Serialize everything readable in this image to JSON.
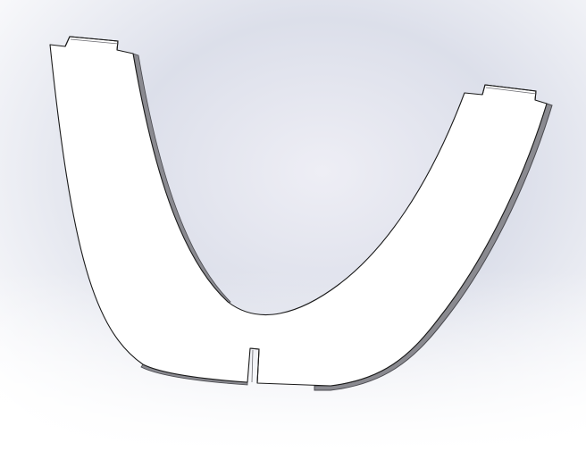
{
  "viewport": {
    "background": {
      "center_color": "#eeeef5",
      "mid_color": "#dcdfea",
      "edge_color": "#ffffff"
    },
    "model": {
      "part": "u-shaped-sheet-metal-part",
      "face_color": "#ffffff",
      "edge_color": "#1a1a1a",
      "thickness_color": "#8a8a90",
      "thickness_dark_color": "#4a4a4f"
    }
  }
}
